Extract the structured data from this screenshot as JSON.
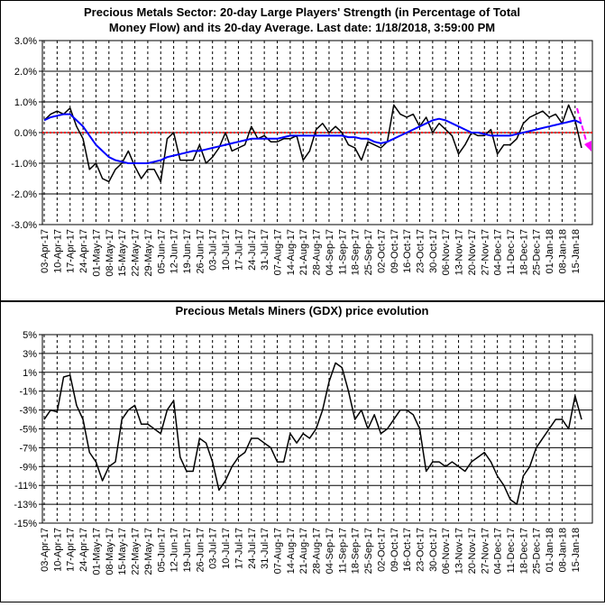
{
  "chart_data": [
    {
      "type": "line",
      "title": [
        "Precious Metals Sector: 20-day Large Players' Strength (in Percentage of Total",
        "Money Flow) and its 20-day Average. Last date: 1/18/2018, 3:59:00 PM"
      ],
      "categories": [
        "03-Apr-17",
        null,
        "10-Apr-17",
        null,
        "17-Apr-17",
        null,
        "24-Apr-17",
        null,
        "01-May-17",
        null,
        "08-May-17",
        null,
        "15-May-17",
        null,
        "22-May-17",
        null,
        "29-May-17",
        null,
        "05-Jun-17",
        null,
        "12-Jun-17",
        null,
        "19-Jun-17",
        null,
        "26-Jun-17",
        null,
        "03-Jul-17",
        null,
        "10-Jul-17",
        null,
        "17-Jul-17",
        null,
        "24-Jul-17",
        null,
        "31-Jul-17",
        null,
        "07-Aug-17",
        null,
        "14-Aug-17",
        null,
        "21-Aug-17",
        null,
        "28-Aug-17",
        null,
        "04-Sep-17",
        null,
        "11-Sep-17",
        null,
        "18-Sep-17",
        null,
        "25-Sep-17",
        null,
        "02-Oct-17",
        null,
        "09-Oct-17",
        null,
        "16-Oct-17",
        null,
        "23-Oct-17",
        null,
        "30-Oct-17",
        null,
        "06-Nov-17",
        null,
        "13-Nov-17",
        null,
        "20-Nov-17",
        null,
        "27-Nov-17",
        null,
        "04-Dec-17",
        null,
        "11-Dec-17",
        null,
        "18-Dec-17",
        null,
        "25-Dec-17",
        null,
        "01-Jan-18",
        null,
        "08-Jan-18",
        null,
        "15-Jan-18",
        null
      ],
      "series": [
        {
          "color": "#000000",
          "values": [
            0.4,
            0.6,
            0.7,
            0.6,
            0.8,
            0.2,
            -0.2,
            -1.2,
            -1.0,
            -1.5,
            -1.6,
            -1.2,
            -1.0,
            -0.6,
            -1.1,
            -1.5,
            -1.2,
            -1.2,
            -1.6,
            -0.2,
            0.0,
            -0.9,
            -0.9,
            -0.9,
            -0.4,
            -1.0,
            -0.8,
            -0.5,
            0.0,
            -0.6,
            -0.5,
            -0.4,
            0.2,
            -0.2,
            -0.1,
            -0.3,
            -0.3,
            -0.2,
            -0.2,
            -0.1,
            -0.9,
            -0.6,
            0.1,
            0.3,
            0.0,
            0.2,
            0.0,
            -0.4,
            -0.5,
            -0.9,
            -0.3,
            -0.4,
            -0.5,
            -0.3,
            0.9,
            0.6,
            0.5,
            0.6,
            0.2,
            0.5,
            0.0,
            0.3,
            0.1,
            -0.1,
            -0.7,
            -0.4,
            0.0,
            -0.1,
            -0.1,
            0.1,
            -0.7,
            -0.4,
            -0.4,
            -0.2,
            0.3,
            0.5,
            0.6,
            0.7,
            0.5,
            0.6,
            0.3,
            0.9,
            0.4,
            -0.5
          ]
        },
        {
          "color": "#0000ff",
          "values": [
            0.4,
            0.5,
            0.55,
            0.6,
            0.6,
            0.4,
            0.2,
            -0.1,
            -0.4,
            -0.6,
            -0.8,
            -0.9,
            -0.95,
            -1.0,
            -1.0,
            -1.0,
            -1.0,
            -0.95,
            -0.9,
            -0.8,
            -0.75,
            -0.7,
            -0.65,
            -0.6,
            -0.6,
            -0.55,
            -0.5,
            -0.45,
            -0.4,
            -0.35,
            -0.3,
            -0.25,
            -0.2,
            -0.2,
            -0.2,
            -0.2,
            -0.2,
            -0.15,
            -0.1,
            -0.1,
            -0.1,
            -0.1,
            -0.1,
            -0.1,
            -0.1,
            -0.1,
            -0.1,
            -0.15,
            -0.15,
            -0.2,
            -0.2,
            -0.3,
            -0.35,
            -0.3,
            -0.2,
            -0.1,
            0.0,
            0.1,
            0.2,
            0.3,
            0.4,
            0.45,
            0.4,
            0.3,
            0.2,
            0.1,
            0.0,
            0.0,
            -0.05,
            -0.1,
            -0.1,
            -0.1,
            -0.1,
            -0.05,
            0.0,
            0.05,
            0.1,
            0.15,
            0.2,
            0.25,
            0.3,
            0.35,
            0.4,
            0.3
          ]
        }
      ],
      "hline": {
        "value": 0,
        "color": "#ff0000"
      },
      "ylim": [
        -3,
        3
      ],
      "yticks": [
        {
          "value": 3,
          "label": "3.0%"
        },
        {
          "value": 2,
          "label": "2.0%"
        },
        {
          "value": 1,
          "label": "1.0%"
        },
        {
          "value": 0,
          "label": "0.0%"
        },
        {
          "value": -1,
          "label": "-1.0%"
        },
        {
          "value": -2,
          "label": "-2.0%"
        },
        {
          "value": -3,
          "label": "-3.0%"
        }
      ],
      "grid": true
    },
    {
      "type": "line",
      "title": [
        "Precious Metals Miners (GDX) price evolution"
      ],
      "categories": [
        "03-Apr-17",
        null,
        "10-Apr-17",
        null,
        "17-Apr-17",
        null,
        "24-Apr-17",
        null,
        "01-May-17",
        null,
        "08-May-17",
        null,
        "15-May-17",
        null,
        "22-May-17",
        null,
        "29-May-17",
        null,
        "05-Jun-17",
        null,
        "12-Jun-17",
        null,
        "19-Jun-17",
        null,
        "26-Jun-17",
        null,
        "03-Jul-17",
        null,
        "10-Jul-17",
        null,
        "17-Jul-17",
        null,
        "24-Jul-17",
        null,
        "31-Jul-17",
        null,
        "07-Aug-17",
        null,
        "14-Aug-17",
        null,
        "21-Aug-17",
        null,
        "28-Aug-17",
        null,
        "04-Sep-17",
        null,
        "11-Sep-17",
        null,
        "18-Sep-17",
        null,
        "25-Sep-17",
        null,
        "02-Oct-17",
        null,
        "09-Oct-17",
        null,
        "16-Oct-17",
        null,
        "23-Oct-17",
        null,
        "30-Oct-17",
        null,
        "06-Nov-17",
        null,
        "13-Nov-17",
        null,
        "20-Nov-17",
        null,
        "27-Nov-17",
        null,
        "04-Dec-17",
        null,
        "11-Dec-17",
        null,
        "18-Dec-17",
        null,
        "25-Dec-17",
        null,
        "01-Jan-18",
        null,
        "08-Jan-18",
        null,
        "15-Jan-18",
        null
      ],
      "series": [
        {
          "color": "#000000",
          "values": [
            -4,
            -3,
            -3.2,
            0.5,
            0.7,
            -2.5,
            -4,
            -7.5,
            -8.5,
            -10.5,
            -9,
            -8.5,
            -4,
            -3,
            -2.5,
            -4.5,
            -4.5,
            -5,
            -5.5,
            -3,
            -2,
            -8,
            -9.5,
            -9.5,
            -6,
            -6.5,
            -8.5,
            -11.5,
            -10.5,
            -9,
            -8,
            -7.5,
            -6,
            -6,
            -6.5,
            -7,
            -8.5,
            -8.5,
            -5.5,
            -6.5,
            -5.5,
            -6,
            -5,
            -3,
            0,
            2,
            1.5,
            -1,
            -4,
            -3,
            -5,
            -3.5,
            -5.5,
            -5,
            -4,
            -3,
            -3,
            -3.5,
            -5,
            -9.5,
            -8.5,
            -8.5,
            -9,
            -8.5,
            -9,
            -9.5,
            -8.5,
            -8,
            -7.5,
            -8.5,
            -10,
            -11,
            -12.5,
            -13,
            -10,
            -9,
            -7,
            -6,
            -5,
            -4,
            -4,
            -5,
            -1.5,
            -4
          ]
        }
      ],
      "ylim": [
        -15,
        5
      ],
      "yticks": [
        {
          "value": 5,
          "label": "5%"
        },
        {
          "value": 3,
          "label": "3%"
        },
        {
          "value": 1,
          "label": "1%"
        },
        {
          "value": -1,
          "label": "-1%"
        },
        {
          "value": -3,
          "label": "-3%"
        },
        {
          "value": -5,
          "label": "-5%"
        },
        {
          "value": -7,
          "label": "-7%"
        },
        {
          "value": -9,
          "label": "-9%"
        },
        {
          "value": -11,
          "label": "-11%"
        },
        {
          "value": -13,
          "label": "-13%"
        },
        {
          "value": -15,
          "label": "-15%"
        }
      ],
      "grid": true
    }
  ]
}
